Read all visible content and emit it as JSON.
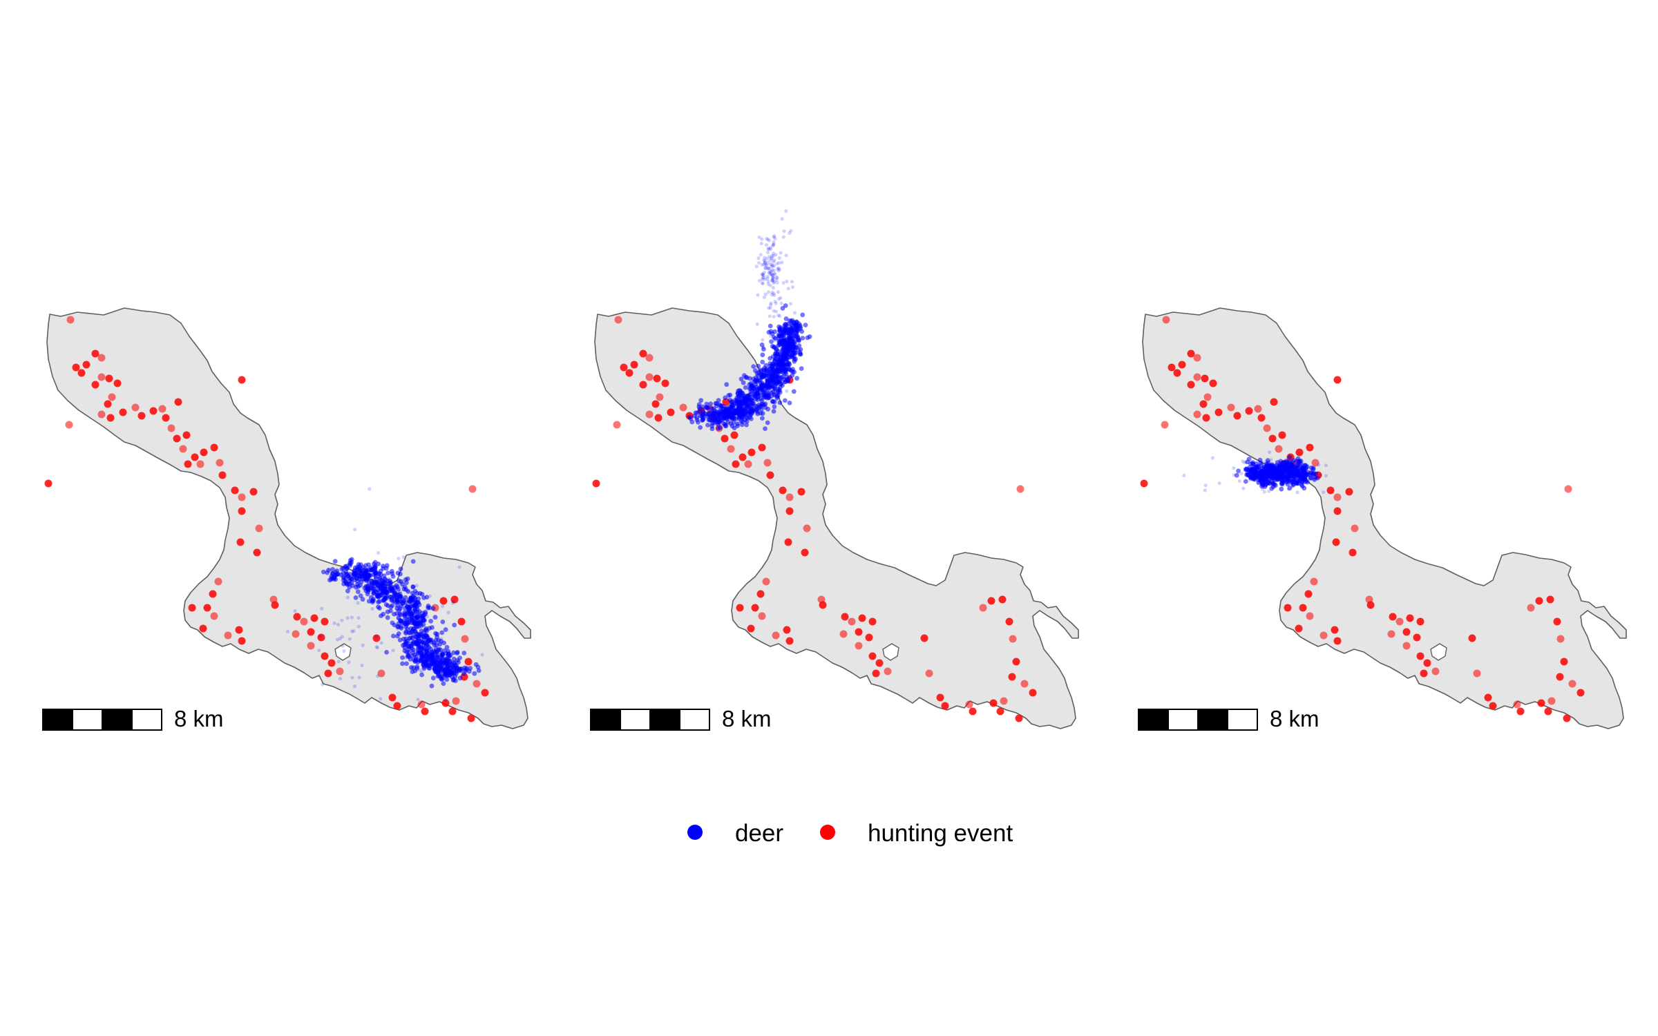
{
  "maps": [
    {
      "name": "map-panel-1",
      "scale_bar": {
        "label": "8 km"
      }
    },
    {
      "name": "map-panel-2",
      "scale_bar": {
        "label": "8 km"
      }
    },
    {
      "name": "map-panel-3",
      "scale_bar": {
        "label": "8 km"
      }
    }
  ],
  "legend": {
    "items": [
      {
        "label": "deer",
        "color": "#0000ff"
      },
      {
        "label": "hunting event",
        "color": "#ff0000"
      }
    ]
  },
  "colors": {
    "deer": "#0000ff",
    "hunting_event": "#ff0000",
    "land": "#e5e5e5",
    "coastline": "#5e5e5e",
    "scale_bar": "#000000"
  }
}
